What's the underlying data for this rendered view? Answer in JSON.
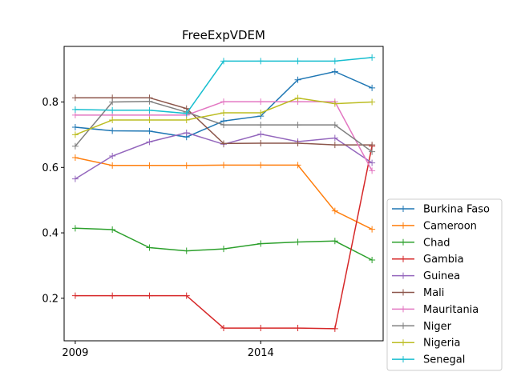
{
  "chart_data": {
    "type": "line",
    "title": "FreeExpVDEM",
    "xlabel": "",
    "ylabel": "",
    "x": [
      2009,
      2010,
      2011,
      2012,
      2013,
      2014,
      2015,
      2016,
      2017
    ],
    "xlim": [
      2008.7,
      2017.3
    ],
    "ylim": [
      0.07,
      0.97
    ],
    "xticks": [
      2009,
      2014
    ],
    "xtick_labels": [
      "2009",
      "2014"
    ],
    "yticks": [
      0.2,
      0.4,
      0.6,
      0.8
    ],
    "ytick_labels": [
      "0.2",
      "0.4",
      "0.6",
      "0.8"
    ],
    "grid": false,
    "legend_position": "outside-right-bottom",
    "marker": "plus",
    "series": [
      {
        "name": "Burkina Faso",
        "color": "#1f77b4",
        "values": [
          0.723,
          0.712,
          0.711,
          0.693,
          0.742,
          0.757,
          0.868,
          0.893,
          0.843
        ]
      },
      {
        "name": "Cameroon",
        "color": "#ff7f0e",
        "values": [
          0.63,
          0.606,
          0.606,
          0.606,
          0.607,
          0.607,
          0.607,
          0.467,
          0.411
        ]
      },
      {
        "name": "Chad",
        "color": "#2ca02c",
        "values": [
          0.414,
          0.41,
          0.355,
          0.345,
          0.351,
          0.367,
          0.372,
          0.375,
          0.317
        ]
      },
      {
        "name": "Gambia",
        "color": "#d62728",
        "values": [
          0.208,
          0.208,
          0.208,
          0.208,
          0.109,
          0.109,
          0.109,
          0.107,
          0.665
        ]
      },
      {
        "name": "Guinea",
        "color": "#9467bd",
        "values": [
          0.565,
          0.635,
          0.678,
          0.706,
          0.671,
          0.702,
          0.679,
          0.69,
          0.614
        ]
      },
      {
        "name": "Mali",
        "color": "#8c564b",
        "values": [
          0.813,
          0.813,
          0.813,
          0.78,
          0.673,
          0.674,
          0.674,
          0.669,
          0.669
        ]
      },
      {
        "name": "Mauritania",
        "color": "#e377c2",
        "values": [
          0.76,
          0.76,
          0.76,
          0.76,
          0.801,
          0.801,
          0.801,
          0.801,
          0.59
        ]
      },
      {
        "name": "Niger",
        "color": "#7f7f7f",
        "values": [
          0.665,
          0.8,
          0.802,
          0.769,
          0.73,
          0.73,
          0.73,
          0.73,
          0.648
        ]
      },
      {
        "name": "Nigeria",
        "color": "#bcbd22",
        "values": [
          0.7,
          0.745,
          0.745,
          0.745,
          0.767,
          0.767,
          0.812,
          0.795,
          0.8
        ]
      },
      {
        "name": "Senegal",
        "color": "#17becf",
        "values": [
          0.777,
          0.775,
          0.775,
          0.765,
          0.925,
          0.925,
          0.925,
          0.925,
          0.936
        ]
      }
    ]
  }
}
